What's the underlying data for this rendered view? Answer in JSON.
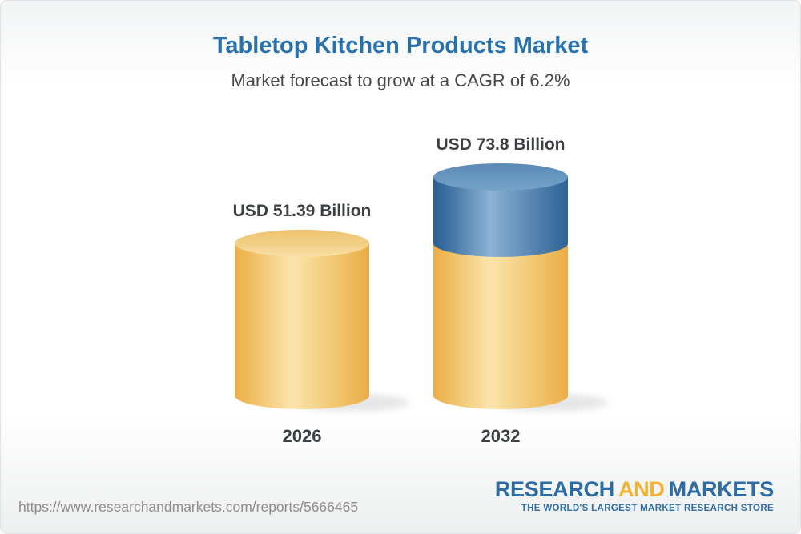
{
  "chart_data": {
    "type": "bar",
    "title": "Tabletop Kitchen Products Market",
    "subtitle": "Market forecast to grow at a CAGR of 6.2%",
    "categories": [
      "2026",
      "2032"
    ],
    "values": [
      51.39,
      73.8
    ],
    "value_labels": [
      "USD 51.39 Billion",
      "USD 73.8 Billion"
    ],
    "unit": "USD Billion",
    "cagr": "6.2%",
    "ylim": [
      0,
      73.8
    ],
    "grid": false,
    "legend": "none",
    "series": [
      {
        "name": "2026 market size",
        "color": "#F6CE7E"
      },
      {
        "name": "Growth to 2032",
        "color": "#5C8CB8"
      }
    ]
  },
  "footer": {
    "url": "https://www.researchandmarkets.com/reports/5666465",
    "logo": {
      "word1": "RESEARCH",
      "word2": "AND",
      "word3": "MARKETS",
      "tagline": "THE WORLD'S LARGEST MARKET RESEARCH STORE"
    }
  },
  "colors": {
    "title_blue": "#2A72AD",
    "text_dark": "#3C4043",
    "bar_yellow": "#F6CE7E",
    "bar_blue": "#5C8CB8",
    "logo_blue": "#2D6CA4",
    "logo_gold": "#F2B234",
    "url_gray": "#8D8D8D"
  }
}
